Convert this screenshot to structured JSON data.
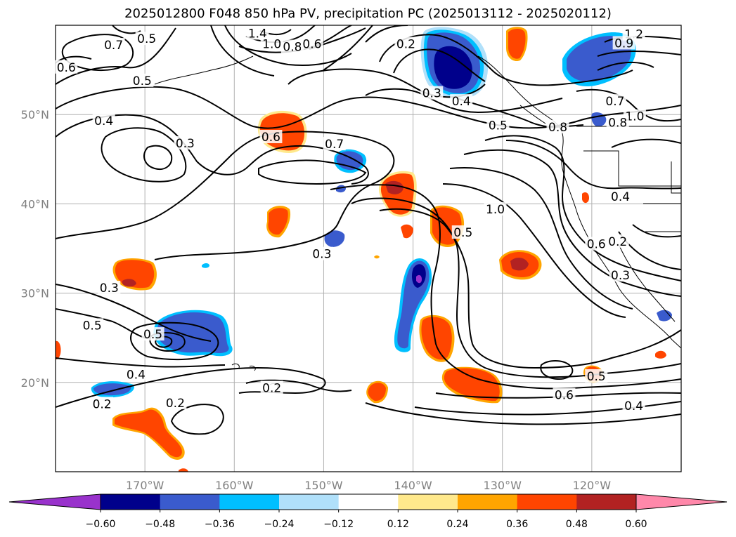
{
  "title": "2025012800 F048 850 hPa PV, precipitation PC (2025013112 - 2025020112)",
  "map": {
    "projection": "equirectangular",
    "lon_range": [
      -180,
      -110
    ],
    "lat_range": [
      10,
      60
    ],
    "lat_ticks": [
      {
        "value": 50,
        "label": "50°N"
      },
      {
        "value": 40,
        "label": "40°N"
      },
      {
        "value": 30,
        "label": "30°N"
      },
      {
        "value": 20,
        "label": "20°N"
      }
    ],
    "lon_ticks": [
      {
        "value": -170,
        "label": "170°W"
      },
      {
        "value": -160,
        "label": "160°W"
      },
      {
        "value": -150,
        "label": "150°W"
      },
      {
        "value": -140,
        "label": "140°W"
      },
      {
        "value": -130,
        "label": "130°W"
      },
      {
        "value": -120,
        "label": "120°W"
      }
    ],
    "grid": true,
    "contour_color": "#000000",
    "coastline_color": "#000000"
  },
  "chart_data": {
    "type": "contour map",
    "contour_field": "850 hPa PV",
    "fill_field": "precipitation PC",
    "contour_labels": [
      {
        "text": "0.5",
        "lon": -170.3,
        "lat": 53.8
      },
      {
        "text": "0.7",
        "lon": -173.5,
        "lat": 57.8
      },
      {
        "text": "0.5",
        "lon": -169.8,
        "lat": 58.5
      },
      {
        "text": "0.6",
        "lon": -178.8,
        "lat": 55.3
      },
      {
        "text": "0.4",
        "lon": -174.6,
        "lat": 49.3
      },
      {
        "text": "0.3",
        "lon": -165.5,
        "lat": 46.8
      },
      {
        "text": "0.6",
        "lon": -155.9,
        "lat": 47.5
      },
      {
        "text": "0.7",
        "lon": -148.8,
        "lat": 46.7
      },
      {
        "text": "0.2",
        "lon": -140.8,
        "lat": 57.9
      },
      {
        "text": "0.3",
        "lon": -137.9,
        "lat": 52.4
      },
      {
        "text": "0.4",
        "lon": -134.6,
        "lat": 51.5
      },
      {
        "text": "0.5",
        "lon": -130.5,
        "lat": 48.8
      },
      {
        "text": "0.8",
        "lon": -123.8,
        "lat": 48.6
      },
      {
        "text": "1.4",
        "lon": -157.4,
        "lat": 59.1
      },
      {
        "text": "1.0",
        "lon": -155.8,
        "lat": 57.9
      },
      {
        "text": "0.8",
        "lon": -153.5,
        "lat": 57.6
      },
      {
        "text": "0.6",
        "lon": -151.3,
        "lat": 57.9
      },
      {
        "text": "1.2",
        "lon": -115.3,
        "lat": 59.0
      },
      {
        "text": "0.9",
        "lon": -116.4,
        "lat": 58.0
      },
      {
        "text": "0.7",
        "lon": -117.4,
        "lat": 51.5
      },
      {
        "text": "1.0",
        "lon": -115.2,
        "lat": 49.8
      },
      {
        "text": "0.8",
        "lon": -117.1,
        "lat": 49.1
      },
      {
        "text": "1.0",
        "lon": -130.8,
        "lat": 39.4
      },
      {
        "text": "0.5",
        "lon": -134.4,
        "lat": 36.8
      },
      {
        "text": "0.4",
        "lon": -116.8,
        "lat": 40.8
      },
      {
        "text": "0.6",
        "lon": -119.5,
        "lat": 35.5
      },
      {
        "text": "0.2",
        "lon": -117.1,
        "lat": 35.8
      },
      {
        "text": "0.3",
        "lon": -116.8,
        "lat": 32.0
      },
      {
        "text": "0.3",
        "lon": -150.2,
        "lat": 34.4
      },
      {
        "text": "0.3",
        "lon": -174.0,
        "lat": 30.6
      },
      {
        "text": "0.5",
        "lon": -175.9,
        "lat": 26.4
      },
      {
        "text": "0.5",
        "lon": -169.1,
        "lat": 25.4
      },
      {
        "text": "0.4",
        "lon": -171.0,
        "lat": 20.9
      },
      {
        "text": "0.2",
        "lon": -174.8,
        "lat": 17.6
      },
      {
        "text": "0.2",
        "lon": -166.6,
        "lat": 17.7
      },
      {
        "text": "0.2",
        "lon": -155.8,
        "lat": 19.4
      },
      {
        "text": "0.5",
        "lon": -119.5,
        "lat": 20.7
      },
      {
        "text": "0.6",
        "lon": -123.1,
        "lat": 18.6
      },
      {
        "text": "0.4",
        "lon": -115.3,
        "lat": 17.4
      }
    ],
    "colorbar": {
      "extend": "both",
      "boundaries": [
        -0.6,
        -0.48,
        -0.36,
        -0.24,
        -0.12,
        0.12,
        0.24,
        0.36,
        0.48,
        0.6
      ],
      "tick_labels": [
        "−0.60",
        "−0.48",
        "−0.36",
        "−0.24",
        "−0.12",
        "0.12",
        "0.24",
        "0.36",
        "0.48",
        "0.60"
      ],
      "colors": [
        "#9932cc",
        "#00008b",
        "#3a5bcd",
        "#00bfff",
        "#b0e0fa",
        "#ffffff",
        "#ffe98c",
        "#ffa500",
        "#ff4500",
        "#b22222",
        "#ff88aa"
      ]
    }
  }
}
